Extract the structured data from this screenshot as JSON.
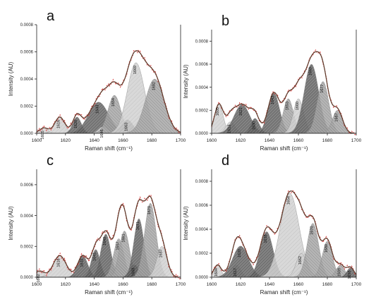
{
  "chart_data": [
    {
      "type": "area",
      "panel_label": "a",
      "xlabel": "Raman shift (cm⁻¹)",
      "ylabel": "Intensity (AU)",
      "xlim": [
        1600,
        1700
      ],
      "ylim": [
        0,
        0.0008
      ],
      "xticks": [
        "1600",
        "1620",
        "1640",
        "1660",
        "1680",
        "1700"
      ],
      "yticks": [
        "0.0000",
        "0.0002",
        "0.0004",
        "0.0006",
        "0.0008"
      ],
      "peaks": [
        {
          "center": 1605,
          "label": "1605",
          "amplitude": 4e-05,
          "width": 3.0,
          "shade": "light"
        },
        {
          "center": 1616,
          "label": "1616",
          "amplitude": 0.00012,
          "width": 3.5,
          "shade": "light"
        },
        {
          "center": 1628,
          "label": "1628",
          "amplitude": 0.00012,
          "width": 3.0,
          "shade": "dark"
        },
        {
          "center": 1643,
          "label": "1643",
          "amplitude": 0.00023,
          "width": 7.0,
          "shade": "dark"
        },
        {
          "center": 1646,
          "label": "1646",
          "amplitude": 5e-05,
          "width": 3.0,
          "shade": "light"
        },
        {
          "center": 1654,
          "label": "1654",
          "amplitude": 0.00028,
          "width": 4.5,
          "shade": "mid"
        },
        {
          "center": 1663,
          "label": "1663",
          "amplitude": 0.0001,
          "width": 4.0,
          "shade": "dark"
        },
        {
          "center": 1669,
          "label": "1669",
          "amplitude": 0.00052,
          "width": 6.0,
          "shade": "light"
        },
        {
          "center": 1682,
          "label": "1682",
          "amplitude": 0.0004,
          "width": 6.5,
          "shade": "mid"
        }
      ]
    },
    {
      "type": "area",
      "panel_label": "b",
      "xlabel": "Raman shift (cm⁻¹)",
      "ylabel": "Intensity (AU)",
      "xlim": [
        1600,
        1700
      ],
      "ylim": [
        0,
        0.0009
      ],
      "xticks": [
        "1600",
        "1620",
        "1640",
        "1660",
        "1680",
        "1700"
      ],
      "yticks": [
        "0.0000",
        "0.0002",
        "0.0004",
        "0.0006",
        "0.0008"
      ],
      "peaks": [
        {
          "center": 1605,
          "label": "1605",
          "amplitude": 0.00025,
          "width": 3.0,
          "shade": "light"
        },
        {
          "center": 1613,
          "label": "1613",
          "amplitude": 0.0001,
          "width": 3.0,
          "shade": "light"
        },
        {
          "center": 1621,
          "label": "1621",
          "amplitude": 0.00025,
          "width": 5.5,
          "shade": "dark"
        },
        {
          "center": 1630,
          "label": "1630",
          "amplitude": 0.00013,
          "width": 3.0,
          "shade": "dark"
        },
        {
          "center": 1643,
          "label": "1643",
          "amplitude": 0.00035,
          "width": 4.0,
          "shade": "dark"
        },
        {
          "center": 1653,
          "label": "1653",
          "amplitude": 0.0003,
          "width": 3.5,
          "shade": "mid"
        },
        {
          "center": 1660,
          "label": "1660",
          "amplitude": 0.0003,
          "width": 3.5,
          "shade": "light"
        },
        {
          "center": 1669,
          "label": "1669",
          "amplitude": 0.0006,
          "width": 5.0,
          "shade": "dark"
        },
        {
          "center": 1677,
          "label": "1677",
          "amplitude": 0.00045,
          "width": 4.0,
          "shade": "mid"
        },
        {
          "center": 1687,
          "label": "1687",
          "amplitude": 0.0002,
          "width": 3.5,
          "shade": "mid"
        }
      ]
    },
    {
      "type": "area",
      "panel_label": "c",
      "xlabel": "Raman shift (cm⁻¹)",
      "ylabel": "Intensity (AU)",
      "xlim": [
        1600,
        1700
      ],
      "ylim": [
        0,
        0.0007
      ],
      "xticks": [
        "1600",
        "1620",
        "1640",
        "1660",
        "1680",
        "1700"
      ],
      "yticks": [
        "0.0000",
        "0.0002",
        "0.0004",
        "0.0006"
      ],
      "peaks": [
        {
          "center": 1602,
          "label": "1602",
          "amplitude": 4e-05,
          "width": 3.0,
          "shade": "light"
        },
        {
          "center": 1616,
          "label": "1616",
          "amplitude": 0.00014,
          "width": 4.5,
          "shade": "light"
        },
        {
          "center": 1632,
          "label": "1632",
          "amplitude": 0.00014,
          "width": 3.5,
          "shade": "dark"
        },
        {
          "center": 1641,
          "label": "1641",
          "amplitude": 0.00018,
          "width": 3.0,
          "shade": "dark"
        },
        {
          "center": 1648,
          "label": "1648",
          "amplitude": 0.00028,
          "width": 3.5,
          "shade": "dark"
        },
        {
          "center": 1657,
          "label": "1657",
          "amplitude": 0.00025,
          "width": 3.5,
          "shade": "mid"
        },
        {
          "center": 1661,
          "label": "1661",
          "amplitude": 0.0003,
          "width": 3.5,
          "shade": "mid"
        },
        {
          "center": 1668,
          "label": "1668",
          "amplitude": 8e-05,
          "width": 3.0,
          "shade": "dark"
        },
        {
          "center": 1671,
          "label": "1671",
          "amplitude": 0.00038,
          "width": 3.5,
          "shade": "dark"
        },
        {
          "center": 1679,
          "label": "1679",
          "amplitude": 0.00048,
          "width": 4.0,
          "shade": "mid"
        },
        {
          "center": 1687,
          "label": "1687",
          "amplitude": 0.0002,
          "width": 3.5,
          "shade": "light"
        }
      ]
    },
    {
      "type": "area",
      "panel_label": "d",
      "xlabel": "Raman shift (cm⁻¹)",
      "ylabel": "Intensity (AU)",
      "xlim": [
        1600,
        1700
      ],
      "ylim": [
        0,
        0.0009
      ],
      "xticks": [
        "1600",
        "1620",
        "1640",
        "1660",
        "1680",
        "1700"
      ],
      "yticks": [
        "0.0000",
        "0.0002",
        "0.0004",
        "0.0006",
        "0.0008"
      ],
      "peaks": [
        {
          "center": 1604,
          "label": "1604",
          "amplitude": 0.0001,
          "width": 2.5,
          "shade": "light"
        },
        {
          "center": 1617,
          "label": "1617",
          "amplitude": 0.0001,
          "width": 3.0,
          "shade": "light"
        },
        {
          "center": 1620,
          "label": "1620",
          "amplitude": 0.00026,
          "width": 5.5,
          "shade": "dark"
        },
        {
          "center": 1638,
          "label": "1638",
          "amplitude": 0.00038,
          "width": 4.5,
          "shade": "dark"
        },
        {
          "center": 1654,
          "label": "1654",
          "amplitude": 0.0007,
          "width": 6.5,
          "shade": "light"
        },
        {
          "center": 1662,
          "label": "1662",
          "amplitude": 0.0002,
          "width": 3.5,
          "shade": "light"
        },
        {
          "center": 1670,
          "label": "1670",
          "amplitude": 0.00045,
          "width": 4.0,
          "shade": "mid"
        },
        {
          "center": 1680,
          "label": "1680",
          "amplitude": 0.0003,
          "width": 3.5,
          "shade": "mid"
        },
        {
          "center": 1689,
          "label": "1689",
          "amplitude": 0.0001,
          "width": 3.0,
          "shade": "mid"
        },
        {
          "center": 1696,
          "label": "1696",
          "amplitude": 8e-05,
          "width": 2.5,
          "shade": "dark"
        }
      ]
    }
  ]
}
